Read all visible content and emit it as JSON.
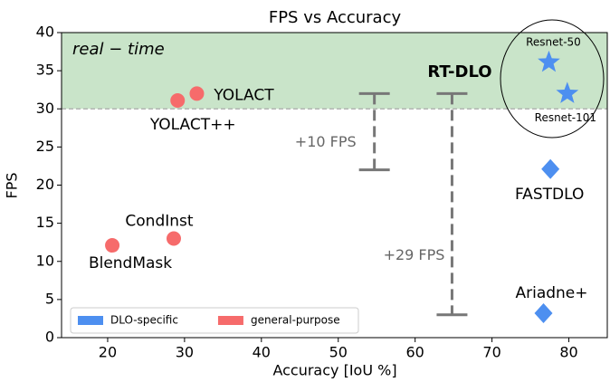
{
  "chart_data": {
    "type": "scatter",
    "title": "FPS vs Accuracy",
    "x_label": "Accuracy [IoU %]",
    "y_label": "FPS",
    "xlim": [
      14,
      85
    ],
    "xticks": [
      20,
      30,
      40,
      50,
      60,
      70,
      80
    ],
    "ylim": [
      0,
      40
    ],
    "yticks": [
      0,
      5,
      10,
      15,
      20,
      25,
      30,
      35,
      40
    ],
    "legend": "lower left",
    "region": {
      "label": "real − time",
      "from": 30,
      "to": 40,
      "color": "#c9e4c9"
    },
    "highlight_label": "RT-DLO",
    "series": [
      {
        "name": "DLO-specific",
        "color": "#4d8ff0",
        "markers": [
          "star",
          "star",
          "diamond",
          "diamond"
        ],
        "labels": [
          "Resnet-50",
          "Resnet-101",
          "FASTDLO",
          "Ariadne+"
        ],
        "x": [
          77.4,
          79.8,
          77.6,
          76.7
        ],
        "values": [
          36.1,
          32,
          22.1,
          3.2
        ]
      },
      {
        "name": "general-purpose",
        "color": "#f66b6b",
        "markers": [
          "circle",
          "circle",
          "circle",
          "circle"
        ],
        "labels": [
          "YOLACT",
          "YOLACT++",
          "BlendMask",
          "CondInst"
        ],
        "x": [
          31.6,
          29.1,
          20.6,
          28.6
        ],
        "values": [
          32,
          31.1,
          12.1,
          13
        ]
      }
    ],
    "annotations": [
      {
        "label": "+10 FPS",
        "x": 54.7,
        "low": 22,
        "high": 32
      },
      {
        "label": "+29 FPS",
        "x": 64.8,
        "low": 3,
        "high": 32
      }
    ]
  }
}
